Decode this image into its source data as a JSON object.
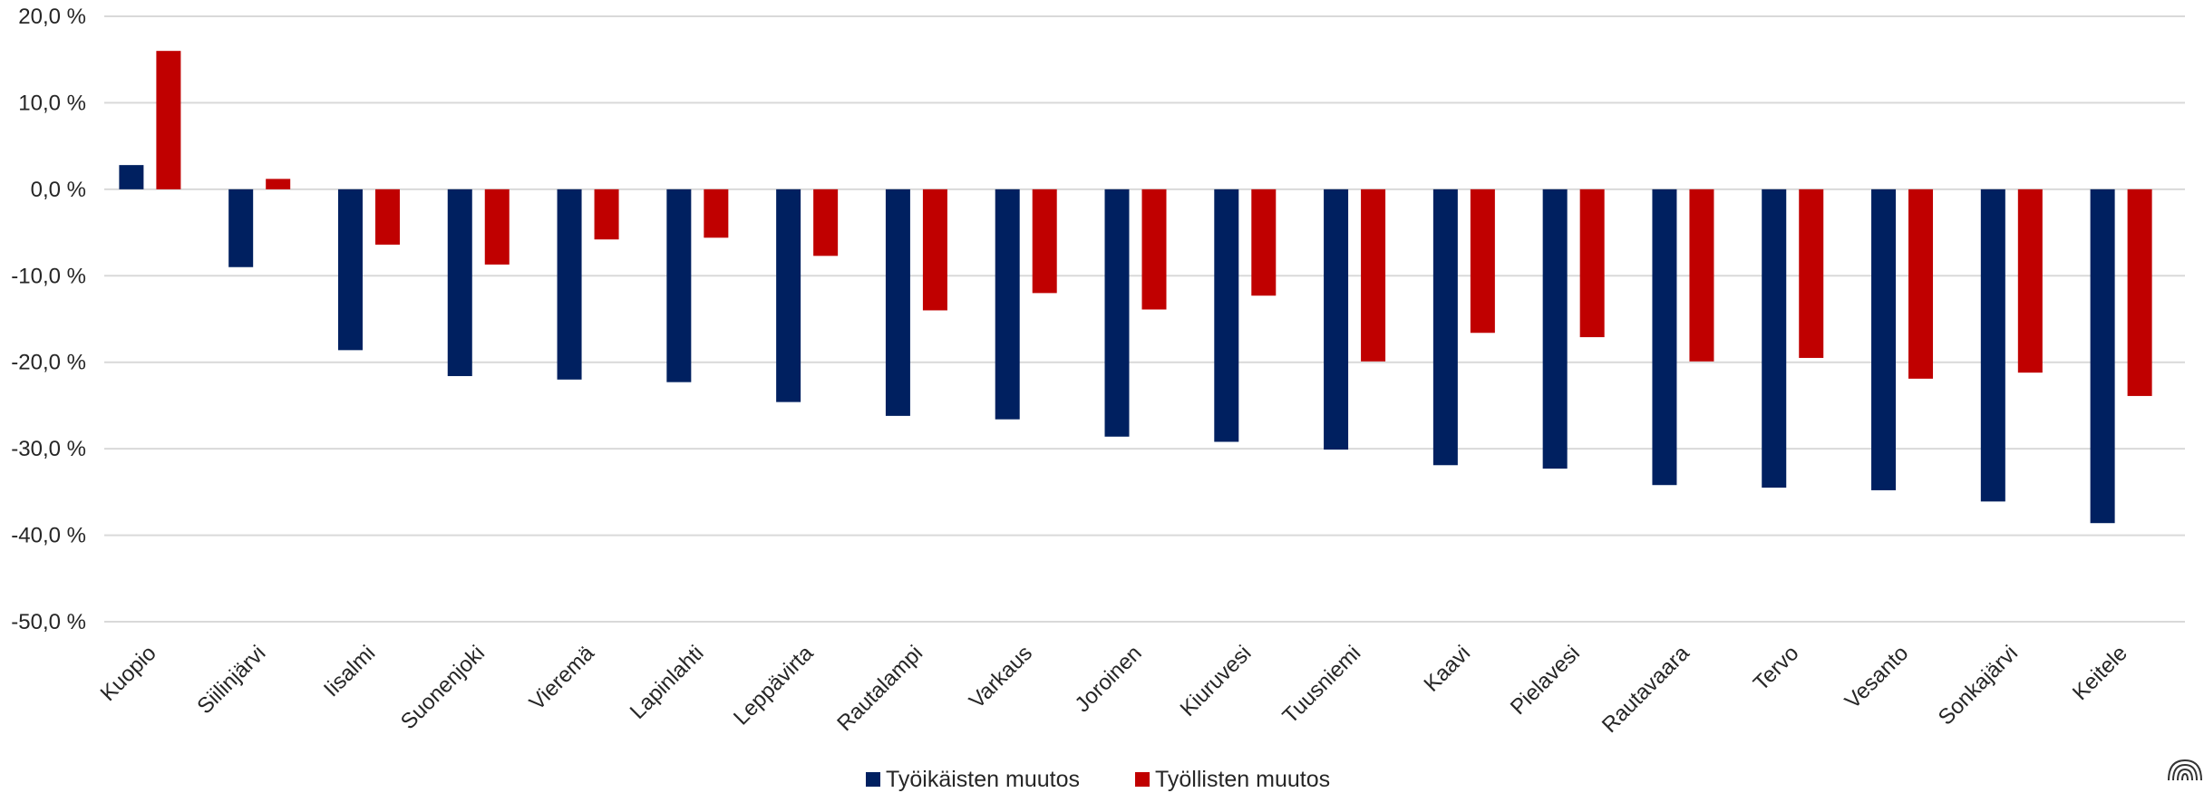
{
  "chart_data": {
    "type": "bar",
    "ylim": [
      -50,
      20
    ],
    "yticks": [
      20,
      10,
      0,
      -10,
      -20,
      -30,
      -40,
      -50
    ],
    "ytick_labels": [
      "20,0 %",
      "10,0 %",
      "0,0 %",
      "-10,0 %",
      "-20,0 %",
      "-30,0 %",
      "-40,0 %",
      "-50,0 %"
    ],
    "grid": true,
    "legend_position": "bottom-center",
    "categories": [
      "Kuopio",
      "Siilinjärvi",
      "Iisalmi",
      "Suonenjoki",
      "Vieremä",
      "Lapinlahti",
      "Leppävirta",
      "Rautalampi",
      "Varkaus",
      "Joroinen",
      "Kiuruvesi",
      "Tuusniemi",
      "Kaavi",
      "Pielavesi",
      "Rautavaara",
      "Tervo",
      "Vesanto",
      "Sonkajärvi",
      "Keitele"
    ],
    "series": [
      {
        "name": "Työikäisten muutos",
        "color": "#002060",
        "values": [
          2.8,
          -9.0,
          -18.6,
          -21.6,
          -22.0,
          -22.3,
          -24.6,
          -26.2,
          -26.6,
          -28.6,
          -29.2,
          -30.1,
          -31.9,
          -32.3,
          -34.2,
          -34.5,
          -34.8,
          -36.1,
          -38.6
        ]
      },
      {
        "name": "Työllisten muutos",
        "color": "#C00000",
        "values": [
          16.0,
          1.2,
          -6.4,
          -8.7,
          -5.8,
          -5.6,
          -7.7,
          -14.0,
          -12.0,
          -13.9,
          -12.3,
          -19.9,
          -16.6,
          -17.1,
          -19.9,
          -19.5,
          -21.9,
          -21.2,
          -23.9
        ]
      }
    ]
  }
}
